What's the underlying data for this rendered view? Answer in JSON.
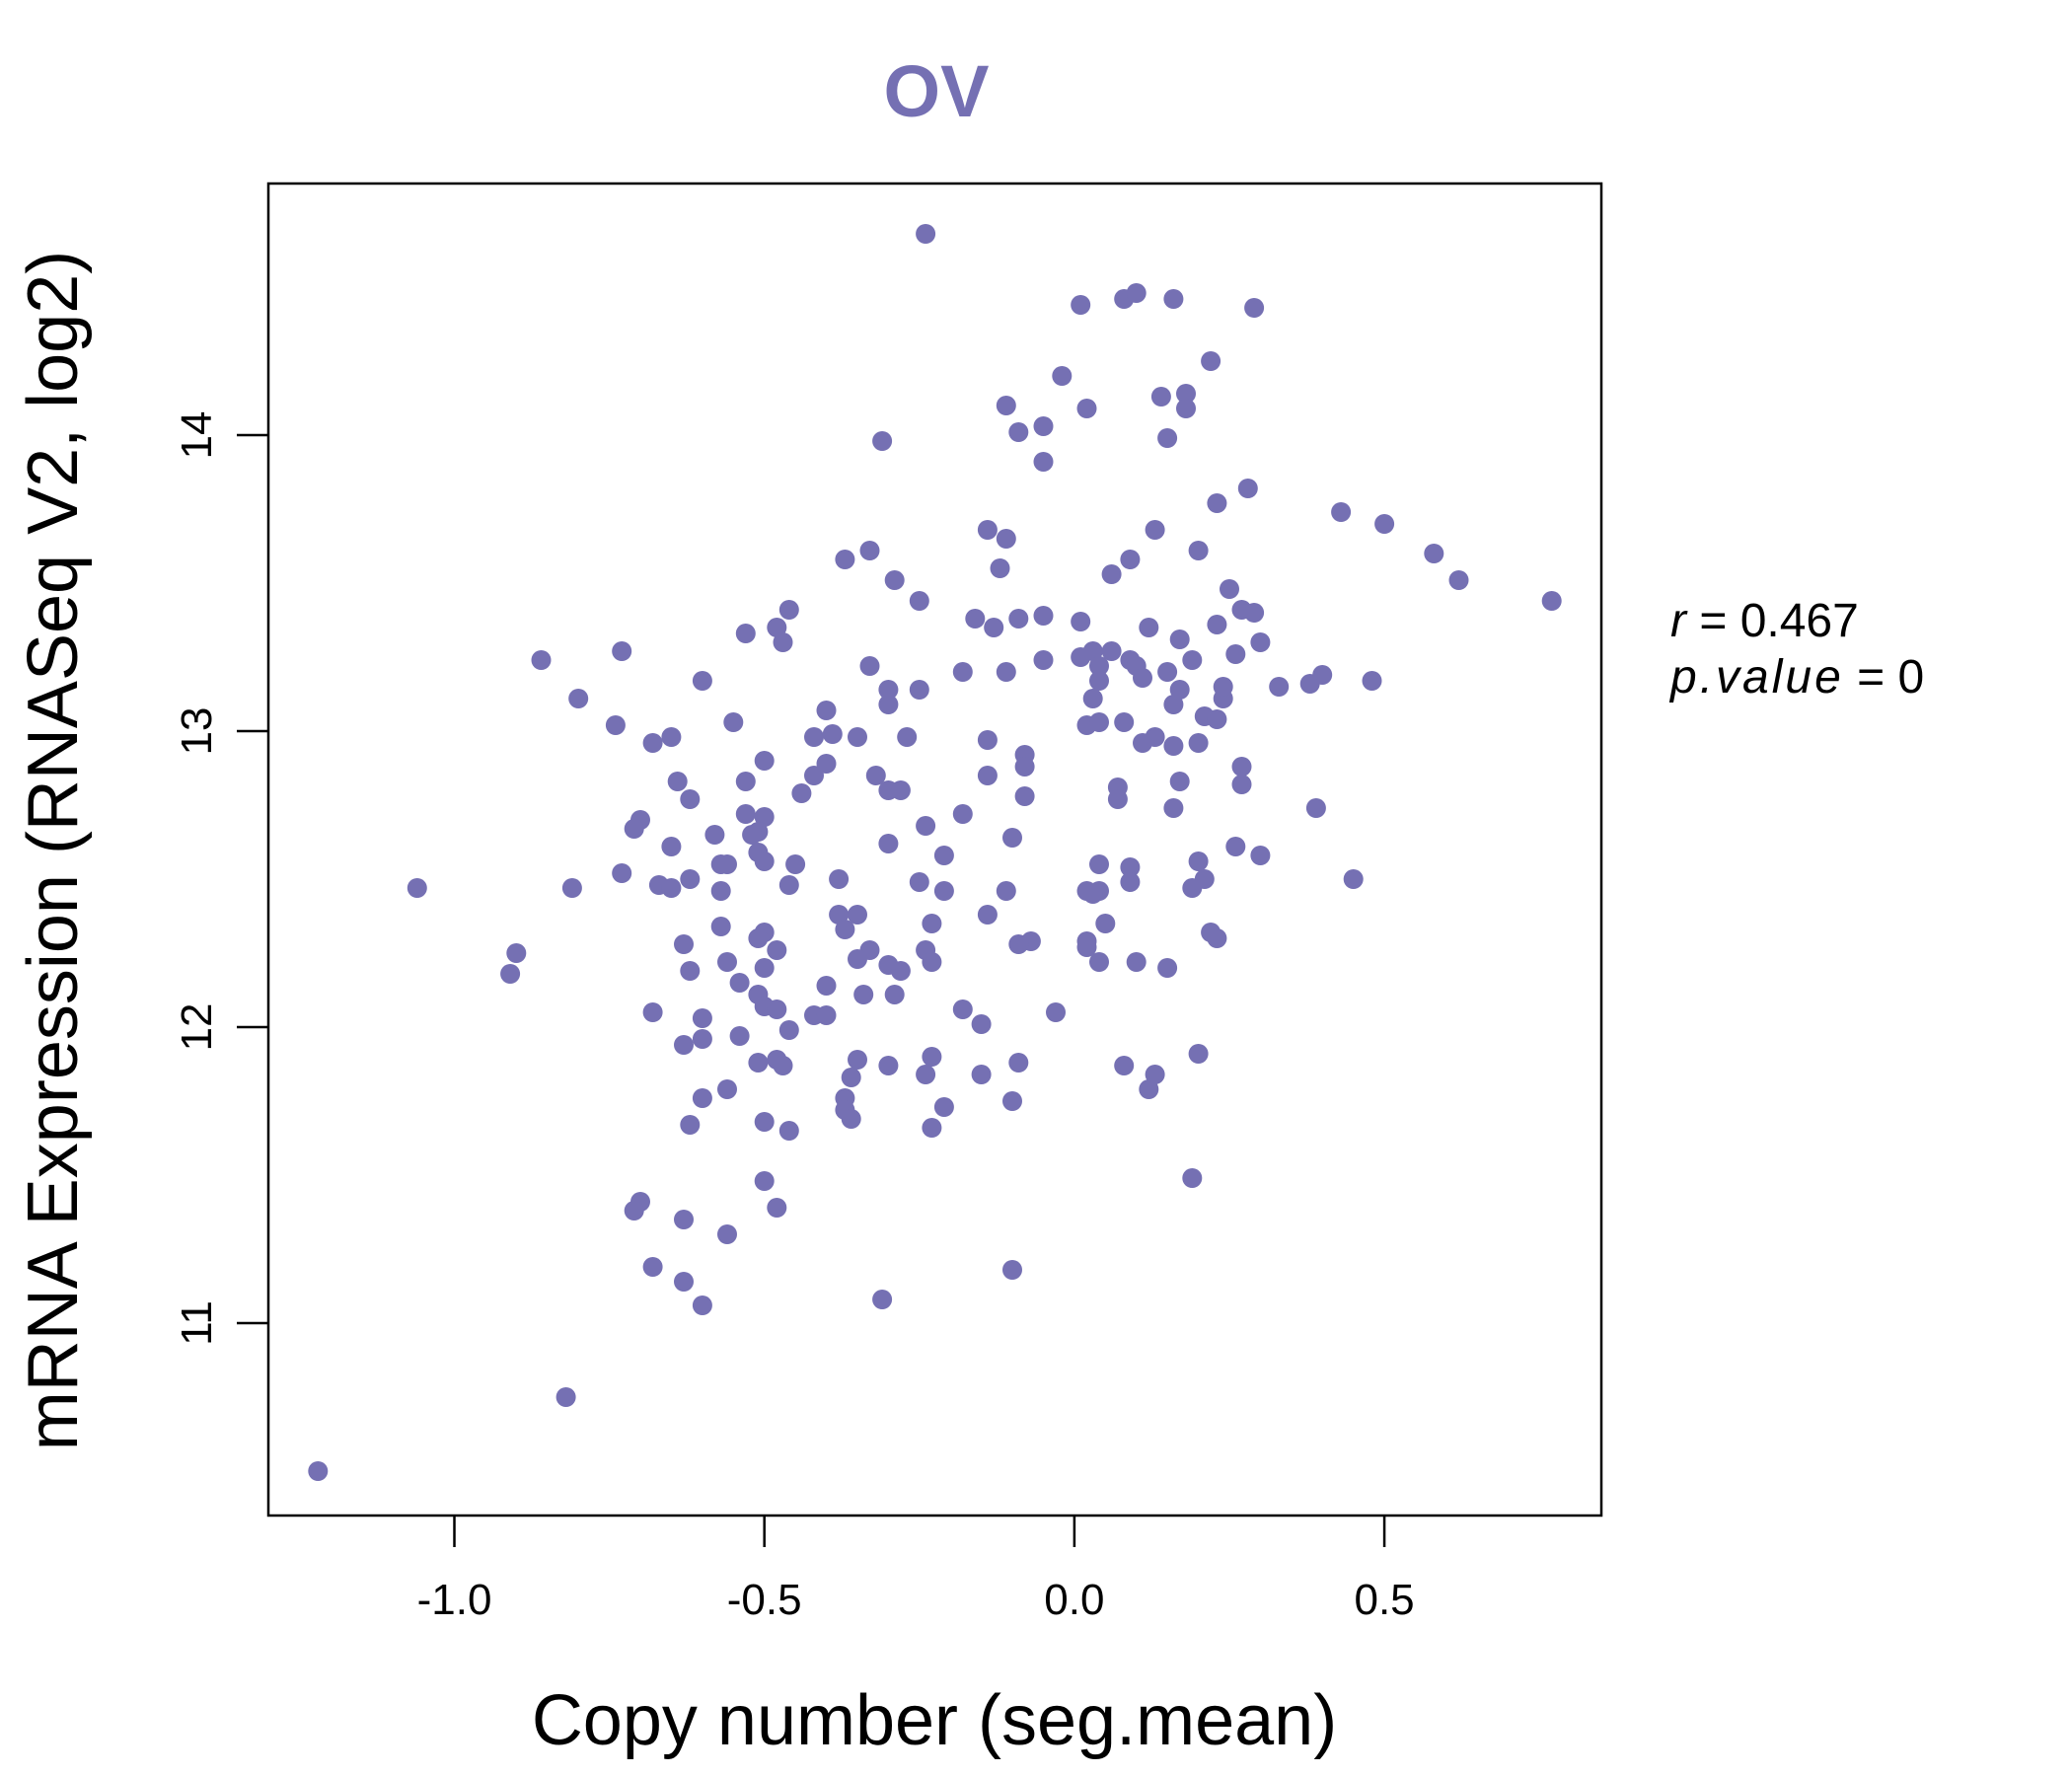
{
  "chart_data": {
    "type": "scatter",
    "title": "OV",
    "xlabel": "Copy number (seg.mean)",
    "ylabel": "mRNA Expression (RNASeq V2, log2)",
    "xlim": [
      -1.3,
      0.85
    ],
    "ylim": [
      10.35,
      14.85
    ],
    "xticks": [
      -1.0,
      -0.5,
      0.0,
      0.5
    ],
    "xtick_labels": [
      "-1.0",
      "-0.5",
      "0.0",
      "0.5"
    ],
    "yticks": [
      11,
      12,
      13,
      14
    ],
    "ytick_labels": [
      "11",
      "12",
      "13",
      "14"
    ],
    "grid": false,
    "point_color": "#7570b3",
    "stats": {
      "r_label": "r",
      "r_value": "0.467",
      "p_label": "p.value",
      "p_value": "0"
    },
    "points": [
      [
        -1.22,
        10.5
      ],
      [
        -0.82,
        10.75
      ],
      [
        -1.06,
        12.47
      ],
      [
        -0.9,
        12.25
      ],
      [
        -0.91,
        12.18
      ],
      [
        -0.86,
        13.24
      ],
      [
        -0.8,
        13.11
      ],
      [
        -0.81,
        12.47
      ],
      [
        -0.73,
        13.27
      ],
      [
        -0.74,
        13.02
      ],
      [
        -0.73,
        12.52
      ],
      [
        -0.7,
        12.7
      ],
      [
        -0.71,
        12.67
      ],
      [
        -0.68,
        12.96
      ],
      [
        -0.65,
        12.98
      ],
      [
        -0.67,
        12.48
      ],
      [
        -0.64,
        12.83
      ],
      [
        -0.65,
        12.61
      ],
      [
        -0.65,
        12.47
      ],
      [
        -0.62,
        12.77
      ],
      [
        -0.62,
        12.5
      ],
      [
        -0.63,
        12.28
      ],
      [
        -0.62,
        12.19
      ],
      [
        -0.68,
        12.05
      ],
      [
        -0.6,
        12.03
      ],
      [
        -0.63,
        11.94
      ],
      [
        -0.6,
        11.96
      ],
      [
        -0.6,
        11.76
      ],
      [
        -0.62,
        11.67
      ],
      [
        -0.7,
        11.41
      ],
      [
        -0.71,
        11.38
      ],
      [
        -0.63,
        11.35
      ],
      [
        -0.68,
        11.19
      ],
      [
        -0.63,
        11.14
      ],
      [
        -0.6,
        11.06
      ],
      [
        -0.6,
        13.17
      ],
      [
        -0.55,
        13.03
      ],
      [
        -0.53,
        13.33
      ],
      [
        -0.48,
        13.35
      ],
      [
        -0.46,
        13.41
      ],
      [
        -0.47,
        13.3
      ],
      [
        -0.5,
        12.9
      ],
      [
        -0.53,
        12.83
      ],
      [
        -0.53,
        12.72
      ],
      [
        -0.5,
        12.71
      ],
      [
        -0.51,
        12.66
      ],
      [
        -0.52,
        12.65
      ],
      [
        -0.58,
        12.65
      ],
      [
        -0.51,
        12.59
      ],
      [
        -0.56,
        12.55
      ],
      [
        -0.57,
        12.55
      ],
      [
        -0.5,
        12.56
      ],
      [
        -0.57,
        12.46
      ],
      [
        -0.46,
        12.48
      ],
      [
        -0.45,
        12.55
      ],
      [
        -0.57,
        12.34
      ],
      [
        -0.5,
        12.32
      ],
      [
        -0.51,
        12.3
      ],
      [
        -0.48,
        12.26
      ],
      [
        -0.56,
        12.22
      ],
      [
        -0.5,
        12.2
      ],
      [
        -0.54,
        12.15
      ],
      [
        -0.51,
        12.11
      ],
      [
        -0.5,
        12.07
      ],
      [
        -0.48,
        12.06
      ],
      [
        -0.46,
        11.99
      ],
      [
        -0.54,
        11.97
      ],
      [
        -0.48,
        11.89
      ],
      [
        -0.47,
        11.87
      ],
      [
        -0.51,
        11.88
      ],
      [
        -0.56,
        11.79
      ],
      [
        -0.5,
        11.68
      ],
      [
        -0.46,
        11.65
      ],
      [
        -0.5,
        11.48
      ],
      [
        -0.48,
        11.39
      ],
      [
        -0.56,
        11.3
      ],
      [
        -0.44,
        12.79
      ],
      [
        -0.42,
        12.85
      ],
      [
        -0.4,
        12.89
      ],
      [
        -0.42,
        12.98
      ],
      [
        -0.39,
        12.99
      ],
      [
        -0.4,
        13.07
      ],
      [
        -0.35,
        12.98
      ],
      [
        -0.32,
        12.85
      ],
      [
        -0.3,
        12.8
      ],
      [
        -0.28,
        12.8
      ],
      [
        -0.27,
        12.98
      ],
      [
        -0.3,
        13.09
      ],
      [
        -0.33,
        13.22
      ],
      [
        -0.3,
        13.14
      ],
      [
        -0.25,
        13.14
      ],
      [
        -0.29,
        13.51
      ],
      [
        -0.25,
        13.44
      ],
      [
        -0.37,
        13.58
      ],
      [
        -0.33,
        13.61
      ],
      [
        -0.31,
        13.98
      ],
      [
        -0.24,
        14.68
      ],
      [
        -0.38,
        12.5
      ],
      [
        -0.38,
        12.38
      ],
      [
        -0.37,
        12.33
      ],
      [
        -0.35,
        12.38
      ],
      [
        -0.33,
        12.26
      ],
      [
        -0.35,
        12.23
      ],
      [
        -0.3,
        12.21
      ],
      [
        -0.28,
        12.19
      ],
      [
        -0.29,
        12.11
      ],
      [
        -0.34,
        12.11
      ],
      [
        -0.4,
        12.14
      ],
      [
        -0.42,
        12.04
      ],
      [
        -0.4,
        12.04
      ],
      [
        -0.35,
        11.89
      ],
      [
        -0.36,
        11.83
      ],
      [
        -0.37,
        11.76
      ],
      [
        -0.37,
        11.72
      ],
      [
        -0.36,
        11.69
      ],
      [
        -0.3,
        11.87
      ],
      [
        -0.23,
        11.9
      ],
      [
        -0.24,
        11.84
      ],
      [
        -0.21,
        11.73
      ],
      [
        -0.23,
        11.66
      ],
      [
        -0.31,
        11.08
      ],
      [
        -0.3,
        12.62
      ],
      [
        -0.24,
        12.68
      ],
      [
        -0.21,
        12.58
      ],
      [
        -0.25,
        12.49
      ],
      [
        -0.21,
        12.46
      ],
      [
        -0.23,
        12.35
      ],
      [
        -0.24,
        12.26
      ],
      [
        -0.23,
        12.22
      ],
      [
        -0.18,
        12.06
      ],
      [
        -0.15,
        12.01
      ],
      [
        -0.15,
        11.84
      ],
      [
        -0.1,
        11.75
      ],
      [
        -0.09,
        11.88
      ],
      [
        -0.1,
        11.18
      ],
      [
        -0.18,
        12.72
      ],
      [
        -0.14,
        12.85
      ],
      [
        -0.14,
        12.97
      ],
      [
        -0.08,
        12.92
      ],
      [
        -0.08,
        12.88
      ],
      [
        -0.08,
        12.78
      ],
      [
        -0.1,
        12.64
      ],
      [
        -0.11,
        12.46
      ],
      [
        -0.14,
        12.38
      ],
      [
        -0.07,
        12.29
      ],
      [
        -0.09,
        12.28
      ],
      [
        -0.03,
        12.05
      ],
      [
        -0.18,
        13.2
      ],
      [
        -0.16,
        13.38
      ],
      [
        -0.13,
        13.35
      ],
      [
        -0.11,
        13.2
      ],
      [
        -0.09,
        13.38
      ],
      [
        -0.05,
        13.39
      ],
      [
        -0.05,
        13.24
      ],
      [
        -0.12,
        13.55
      ],
      [
        -0.14,
        13.68
      ],
      [
        -0.11,
        13.65
      ],
      [
        -0.11,
        14.1
      ],
      [
        -0.09,
        14.01
      ],
      [
        -0.05,
        14.03
      ],
      [
        -0.05,
        13.91
      ],
      [
        -0.02,
        14.2
      ],
      [
        0.01,
        14.44
      ],
      [
        0.02,
        14.09
      ],
      [
        0.01,
        13.37
      ],
      [
        0.01,
        13.25
      ],
      [
        0.03,
        13.27
      ],
      [
        0.04,
        13.22
      ],
      [
        0.04,
        13.17
      ],
      [
        0.03,
        13.11
      ],
      [
        0.02,
        13.02
      ],
      [
        0.04,
        13.03
      ],
      [
        0.06,
        13.27
      ],
      [
        0.08,
        13.03
      ],
      [
        0.07,
        12.81
      ],
      [
        0.07,
        12.77
      ],
      [
        0.04,
        12.55
      ],
      [
        0.02,
        12.46
      ],
      [
        0.04,
        12.46
      ],
      [
        0.03,
        12.45
      ],
      [
        0.02,
        12.29
      ],
      [
        0.02,
        12.27
      ],
      [
        0.05,
        12.35
      ],
      [
        0.04,
        12.22
      ],
      [
        0.09,
        12.54
      ],
      [
        0.09,
        12.49
      ],
      [
        0.1,
        12.22
      ],
      [
        0.08,
        11.87
      ],
      [
        0.12,
        11.79
      ],
      [
        0.13,
        11.84
      ],
      [
        0.15,
        12.2
      ],
      [
        0.09,
        13.24
      ],
      [
        0.1,
        13.22
      ],
      [
        0.11,
        13.18
      ],
      [
        0.12,
        13.35
      ],
      [
        0.15,
        13.2
      ],
      [
        0.16,
        13.09
      ],
      [
        0.17,
        13.31
      ],
      [
        0.17,
        13.14
      ],
      [
        0.19,
        13.24
      ],
      [
        0.13,
        12.98
      ],
      [
        0.11,
        12.96
      ],
      [
        0.16,
        12.95
      ],
      [
        0.17,
        12.83
      ],
      [
        0.16,
        12.74
      ],
      [
        0.2,
        12.96
      ],
      [
        0.21,
        13.05
      ],
      [
        0.23,
        13.04
      ],
      [
        0.24,
        13.11
      ],
      [
        0.24,
        13.15
      ],
      [
        0.26,
        13.26
      ],
      [
        0.23,
        13.36
      ],
      [
        0.25,
        13.48
      ],
      [
        0.27,
        13.41
      ],
      [
        0.29,
        13.4
      ],
      [
        0.3,
        13.3
      ],
      [
        0.27,
        12.88
      ],
      [
        0.27,
        12.82
      ],
      [
        0.26,
        12.61
      ],
      [
        0.3,
        12.58
      ],
      [
        0.2,
        12.56
      ],
      [
        0.21,
        12.5
      ],
      [
        0.19,
        12.47
      ],
      [
        0.22,
        12.32
      ],
      [
        0.23,
        12.3
      ],
      [
        0.2,
        11.91
      ],
      [
        0.19,
        11.49
      ],
      [
        0.06,
        13.53
      ],
      [
        0.09,
        13.58
      ],
      [
        0.13,
        13.68
      ],
      [
        0.2,
        13.61
      ],
      [
        0.23,
        13.77
      ],
      [
        0.28,
        13.82
      ],
      [
        0.15,
        13.99
      ],
      [
        0.14,
        14.13
      ],
      [
        0.18,
        14.14
      ],
      [
        0.18,
        14.09
      ],
      [
        0.22,
        14.25
      ],
      [
        0.16,
        14.46
      ],
      [
        0.08,
        14.46
      ],
      [
        0.1,
        14.48
      ],
      [
        0.29,
        14.43
      ],
      [
        0.33,
        13.15
      ],
      [
        0.38,
        13.16
      ],
      [
        0.4,
        13.19
      ],
      [
        0.39,
        12.74
      ],
      [
        0.45,
        12.5
      ],
      [
        0.48,
        13.17
      ],
      [
        0.43,
        13.74
      ],
      [
        0.5,
        13.7
      ],
      [
        0.58,
        13.6
      ],
      [
        0.62,
        13.51
      ],
      [
        0.77,
        13.44
      ]
    ]
  }
}
